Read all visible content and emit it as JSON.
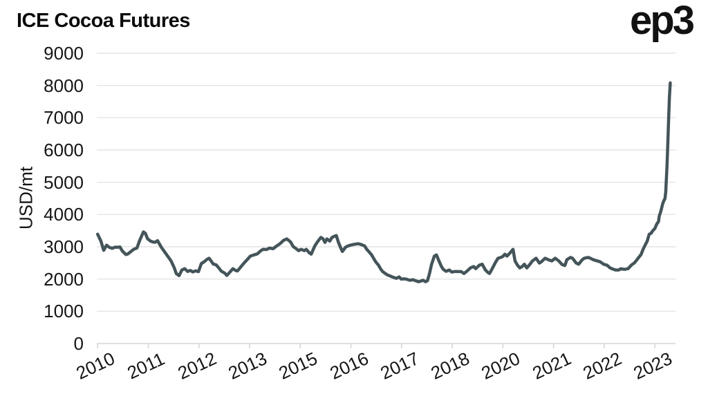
{
  "header": {
    "title": "ICE Cocoa Futures",
    "logo": "ep3"
  },
  "chart_data": {
    "type": "line",
    "title": "ICE Cocoa Futures",
    "xlabel": "",
    "ylabel": "USD/mt",
    "ylim": [
      0,
      9000
    ],
    "xlim": [
      2009.98,
      2024.26
    ],
    "grid": "horizontal-only",
    "legend": "none",
    "line_color": "#44555a",
    "grid_color": "#e4e4e4",
    "axis_color": "#d6d6d6",
    "text_color": "#151515",
    "y_ticks": [
      {
        "value": 0,
        "label": "0"
      },
      {
        "value": 1000,
        "label": "1000"
      },
      {
        "value": 2000,
        "label": "2000"
      },
      {
        "value": 3000,
        "label": "3000"
      },
      {
        "value": 4000,
        "label": "4000"
      },
      {
        "value": 5000,
        "label": "5000"
      },
      {
        "value": 6000,
        "label": "6000"
      },
      {
        "value": 7000,
        "label": "7000"
      },
      {
        "value": 8000,
        "label": "8000"
      },
      {
        "value": 9000,
        "label": "9000"
      }
    ],
    "x_ticks": [
      {
        "year": 2010.0,
        "label": "2010"
      },
      {
        "year": 2011.25,
        "label": "2011"
      },
      {
        "year": 2012.5,
        "label": "2012"
      },
      {
        "year": 2013.75,
        "label": "2013"
      },
      {
        "year": 2015.0,
        "label": "2015"
      },
      {
        "year": 2016.25,
        "label": "2016"
      },
      {
        "year": 2017.5,
        "label": "2017"
      },
      {
        "year": 2018.75,
        "label": "2018"
      },
      {
        "year": 2020.0,
        "label": "2020"
      },
      {
        "year": 2021.25,
        "label": "2021"
      },
      {
        "year": 2022.5,
        "label": "2022"
      },
      {
        "year": 2023.75,
        "label": "2023"
      }
    ],
    "series": [
      {
        "name": "ICE Cocoa Futures (USD/mt)",
        "points": [
          [
            2010.0,
            3390
          ],
          [
            2010.08,
            3180
          ],
          [
            2010.15,
            2890
          ],
          [
            2010.22,
            3050
          ],
          [
            2010.29,
            2980
          ],
          [
            2010.36,
            2950
          ],
          [
            2010.43,
            2990
          ],
          [
            2010.5,
            2985
          ],
          [
            2010.55,
            2995
          ],
          [
            2010.61,
            2870
          ],
          [
            2010.7,
            2760
          ],
          [
            2010.75,
            2780
          ],
          [
            2010.82,
            2850
          ],
          [
            2010.89,
            2920
          ],
          [
            2010.97,
            2960
          ],
          [
            2011.04,
            3200
          ],
          [
            2011.13,
            3460
          ],
          [
            2011.18,
            3415
          ],
          [
            2011.23,
            3250
          ],
          [
            2011.3,
            3180
          ],
          [
            2011.36,
            3150
          ],
          [
            2011.42,
            3140
          ],
          [
            2011.48,
            3190
          ],
          [
            2011.57,
            2990
          ],
          [
            2011.69,
            2780
          ],
          [
            2011.81,
            2565
          ],
          [
            2011.89,
            2350
          ],
          [
            2011.94,
            2170
          ],
          [
            2012.01,
            2105
          ],
          [
            2012.08,
            2280
          ],
          [
            2012.15,
            2320
          ],
          [
            2012.22,
            2235
          ],
          [
            2012.29,
            2265
          ],
          [
            2012.35,
            2220
          ],
          [
            2012.42,
            2255
          ],
          [
            2012.49,
            2230
          ],
          [
            2012.56,
            2480
          ],
          [
            2012.63,
            2535
          ],
          [
            2012.7,
            2610
          ],
          [
            2012.75,
            2645
          ],
          [
            2012.8,
            2560
          ],
          [
            2012.85,
            2470
          ],
          [
            2012.93,
            2435
          ],
          [
            2013.0,
            2330
          ],
          [
            2013.05,
            2245
          ],
          [
            2013.14,
            2180
          ],
          [
            2013.19,
            2110
          ],
          [
            2013.26,
            2210
          ],
          [
            2013.31,
            2280
          ],
          [
            2013.34,
            2320
          ],
          [
            2013.4,
            2270
          ],
          [
            2013.45,
            2250
          ],
          [
            2013.51,
            2340
          ],
          [
            2013.57,
            2430
          ],
          [
            2013.63,
            2520
          ],
          [
            2013.69,
            2600
          ],
          [
            2013.77,
            2710
          ],
          [
            2013.86,
            2750
          ],
          [
            2013.94,
            2780
          ],
          [
            2014.03,
            2880
          ],
          [
            2014.08,
            2920
          ],
          [
            2014.16,
            2915
          ],
          [
            2014.25,
            2960
          ],
          [
            2014.33,
            2940
          ],
          [
            2014.42,
            3025
          ],
          [
            2014.5,
            3095
          ],
          [
            2014.59,
            3200
          ],
          [
            2014.67,
            3245
          ],
          [
            2014.76,
            3150
          ],
          [
            2014.83,
            3000
          ],
          [
            2014.88,
            2960
          ],
          [
            2014.96,
            2880
          ],
          [
            2015.02,
            2920
          ],
          [
            2015.1,
            2880
          ],
          [
            2015.15,
            2920
          ],
          [
            2015.22,
            2815
          ],
          [
            2015.27,
            2770
          ],
          [
            2015.36,
            3025
          ],
          [
            2015.44,
            3175
          ],
          [
            2015.51,
            3290
          ],
          [
            2015.56,
            3250
          ],
          [
            2015.61,
            3135
          ],
          [
            2015.66,
            3245
          ],
          [
            2015.73,
            3175
          ],
          [
            2015.78,
            3285
          ],
          [
            2015.83,
            3320
          ],
          [
            2015.89,
            3350
          ],
          [
            2015.94,
            3150
          ],
          [
            2015.99,
            2990
          ],
          [
            2016.04,
            2855
          ],
          [
            2016.12,
            2990
          ],
          [
            2016.18,
            3025
          ],
          [
            2016.24,
            3050
          ],
          [
            2016.31,
            3070
          ],
          [
            2016.38,
            3085
          ],
          [
            2016.43,
            3095
          ],
          [
            2016.5,
            3070
          ],
          [
            2016.59,
            3025
          ],
          [
            2016.64,
            2920
          ],
          [
            2016.69,
            2855
          ],
          [
            2016.76,
            2750
          ],
          [
            2016.81,
            2645
          ],
          [
            2016.86,
            2535
          ],
          [
            2016.93,
            2430
          ],
          [
            2016.98,
            2320
          ],
          [
            2017.03,
            2235
          ],
          [
            2017.1,
            2170
          ],
          [
            2017.15,
            2125
          ],
          [
            2017.2,
            2105
          ],
          [
            2017.27,
            2065
          ],
          [
            2017.32,
            2045
          ],
          [
            2017.37,
            2020
          ],
          [
            2017.44,
            2065
          ],
          [
            2017.49,
            2000
          ],
          [
            2017.56,
            2005
          ],
          [
            2017.61,
            2000
          ],
          [
            2017.66,
            1980
          ],
          [
            2017.71,
            1960
          ],
          [
            2017.78,
            1980
          ],
          [
            2017.83,
            1955
          ],
          [
            2017.92,
            1915
          ],
          [
            2017.97,
            1935
          ],
          [
            2018.03,
            1960
          ],
          [
            2018.09,
            1915
          ],
          [
            2018.14,
            1950
          ],
          [
            2018.19,
            2170
          ],
          [
            2018.24,
            2450
          ],
          [
            2018.31,
            2710
          ],
          [
            2018.36,
            2750
          ],
          [
            2018.41,
            2600
          ],
          [
            2018.48,
            2400
          ],
          [
            2018.53,
            2300
          ],
          [
            2018.6,
            2240
          ],
          [
            2018.68,
            2280
          ],
          [
            2018.74,
            2215
          ],
          [
            2018.82,
            2235
          ],
          [
            2018.91,
            2230
          ],
          [
            2018.97,
            2230
          ],
          [
            2019.04,
            2170
          ],
          [
            2019.11,
            2240
          ],
          [
            2019.2,
            2345
          ],
          [
            2019.28,
            2390
          ],
          [
            2019.33,
            2320
          ],
          [
            2019.42,
            2430
          ],
          [
            2019.49,
            2460
          ],
          [
            2019.57,
            2280
          ],
          [
            2019.62,
            2215
          ],
          [
            2019.67,
            2170
          ],
          [
            2019.74,
            2330
          ],
          [
            2019.81,
            2500
          ],
          [
            2019.88,
            2645
          ],
          [
            2019.95,
            2670
          ],
          [
            2020.0,
            2700
          ],
          [
            2020.05,
            2770
          ],
          [
            2020.1,
            2710
          ],
          [
            2020.17,
            2800
          ],
          [
            2020.25,
            2920
          ],
          [
            2020.3,
            2560
          ],
          [
            2020.36,
            2430
          ],
          [
            2020.42,
            2345
          ],
          [
            2020.48,
            2390
          ],
          [
            2020.53,
            2460
          ],
          [
            2020.59,
            2345
          ],
          [
            2020.65,
            2430
          ],
          [
            2020.73,
            2560
          ],
          [
            2020.82,
            2645
          ],
          [
            2020.9,
            2495
          ],
          [
            2020.95,
            2535
          ],
          [
            2021.04,
            2645
          ],
          [
            2021.12,
            2600
          ],
          [
            2021.21,
            2560
          ],
          [
            2021.29,
            2645
          ],
          [
            2021.38,
            2560
          ],
          [
            2021.46,
            2450
          ],
          [
            2021.53,
            2420
          ],
          [
            2021.58,
            2600
          ],
          [
            2021.67,
            2670
          ],
          [
            2021.72,
            2645
          ],
          [
            2021.81,
            2495
          ],
          [
            2021.87,
            2460
          ],
          [
            2021.96,
            2600
          ],
          [
            2022.01,
            2645
          ],
          [
            2022.1,
            2670
          ],
          [
            2022.15,
            2650
          ],
          [
            2022.23,
            2600
          ],
          [
            2022.32,
            2565
          ],
          [
            2022.4,
            2535
          ],
          [
            2022.49,
            2455
          ],
          [
            2022.57,
            2430
          ],
          [
            2022.64,
            2350
          ],
          [
            2022.69,
            2320
          ],
          [
            2022.78,
            2280
          ],
          [
            2022.86,
            2280
          ],
          [
            2022.91,
            2320
          ],
          [
            2023.0,
            2300
          ],
          [
            2023.09,
            2320
          ],
          [
            2023.17,
            2430
          ],
          [
            2023.24,
            2495
          ],
          [
            2023.29,
            2565
          ],
          [
            2023.34,
            2650
          ],
          [
            2023.41,
            2760
          ],
          [
            2023.46,
            2920
          ],
          [
            2023.51,
            3050
          ],
          [
            2023.56,
            3170
          ],
          [
            2023.61,
            3385
          ],
          [
            2023.66,
            3420
          ],
          [
            2023.7,
            3500
          ],
          [
            2023.75,
            3565
          ],
          [
            2023.8,
            3710
          ],
          [
            2023.84,
            3780
          ],
          [
            2023.86,
            3960
          ],
          [
            2023.89,
            4065
          ],
          [
            2023.92,
            4210
          ],
          [
            2023.94,
            4315
          ],
          [
            2023.97,
            4420
          ],
          [
            2024.0,
            4495
          ],
          [
            2024.02,
            4710
          ],
          [
            2024.05,
            5495
          ],
          [
            2024.07,
            6210
          ],
          [
            2024.09,
            6925
          ],
          [
            2024.11,
            7640
          ],
          [
            2024.13,
            8080
          ]
        ]
      }
    ]
  }
}
